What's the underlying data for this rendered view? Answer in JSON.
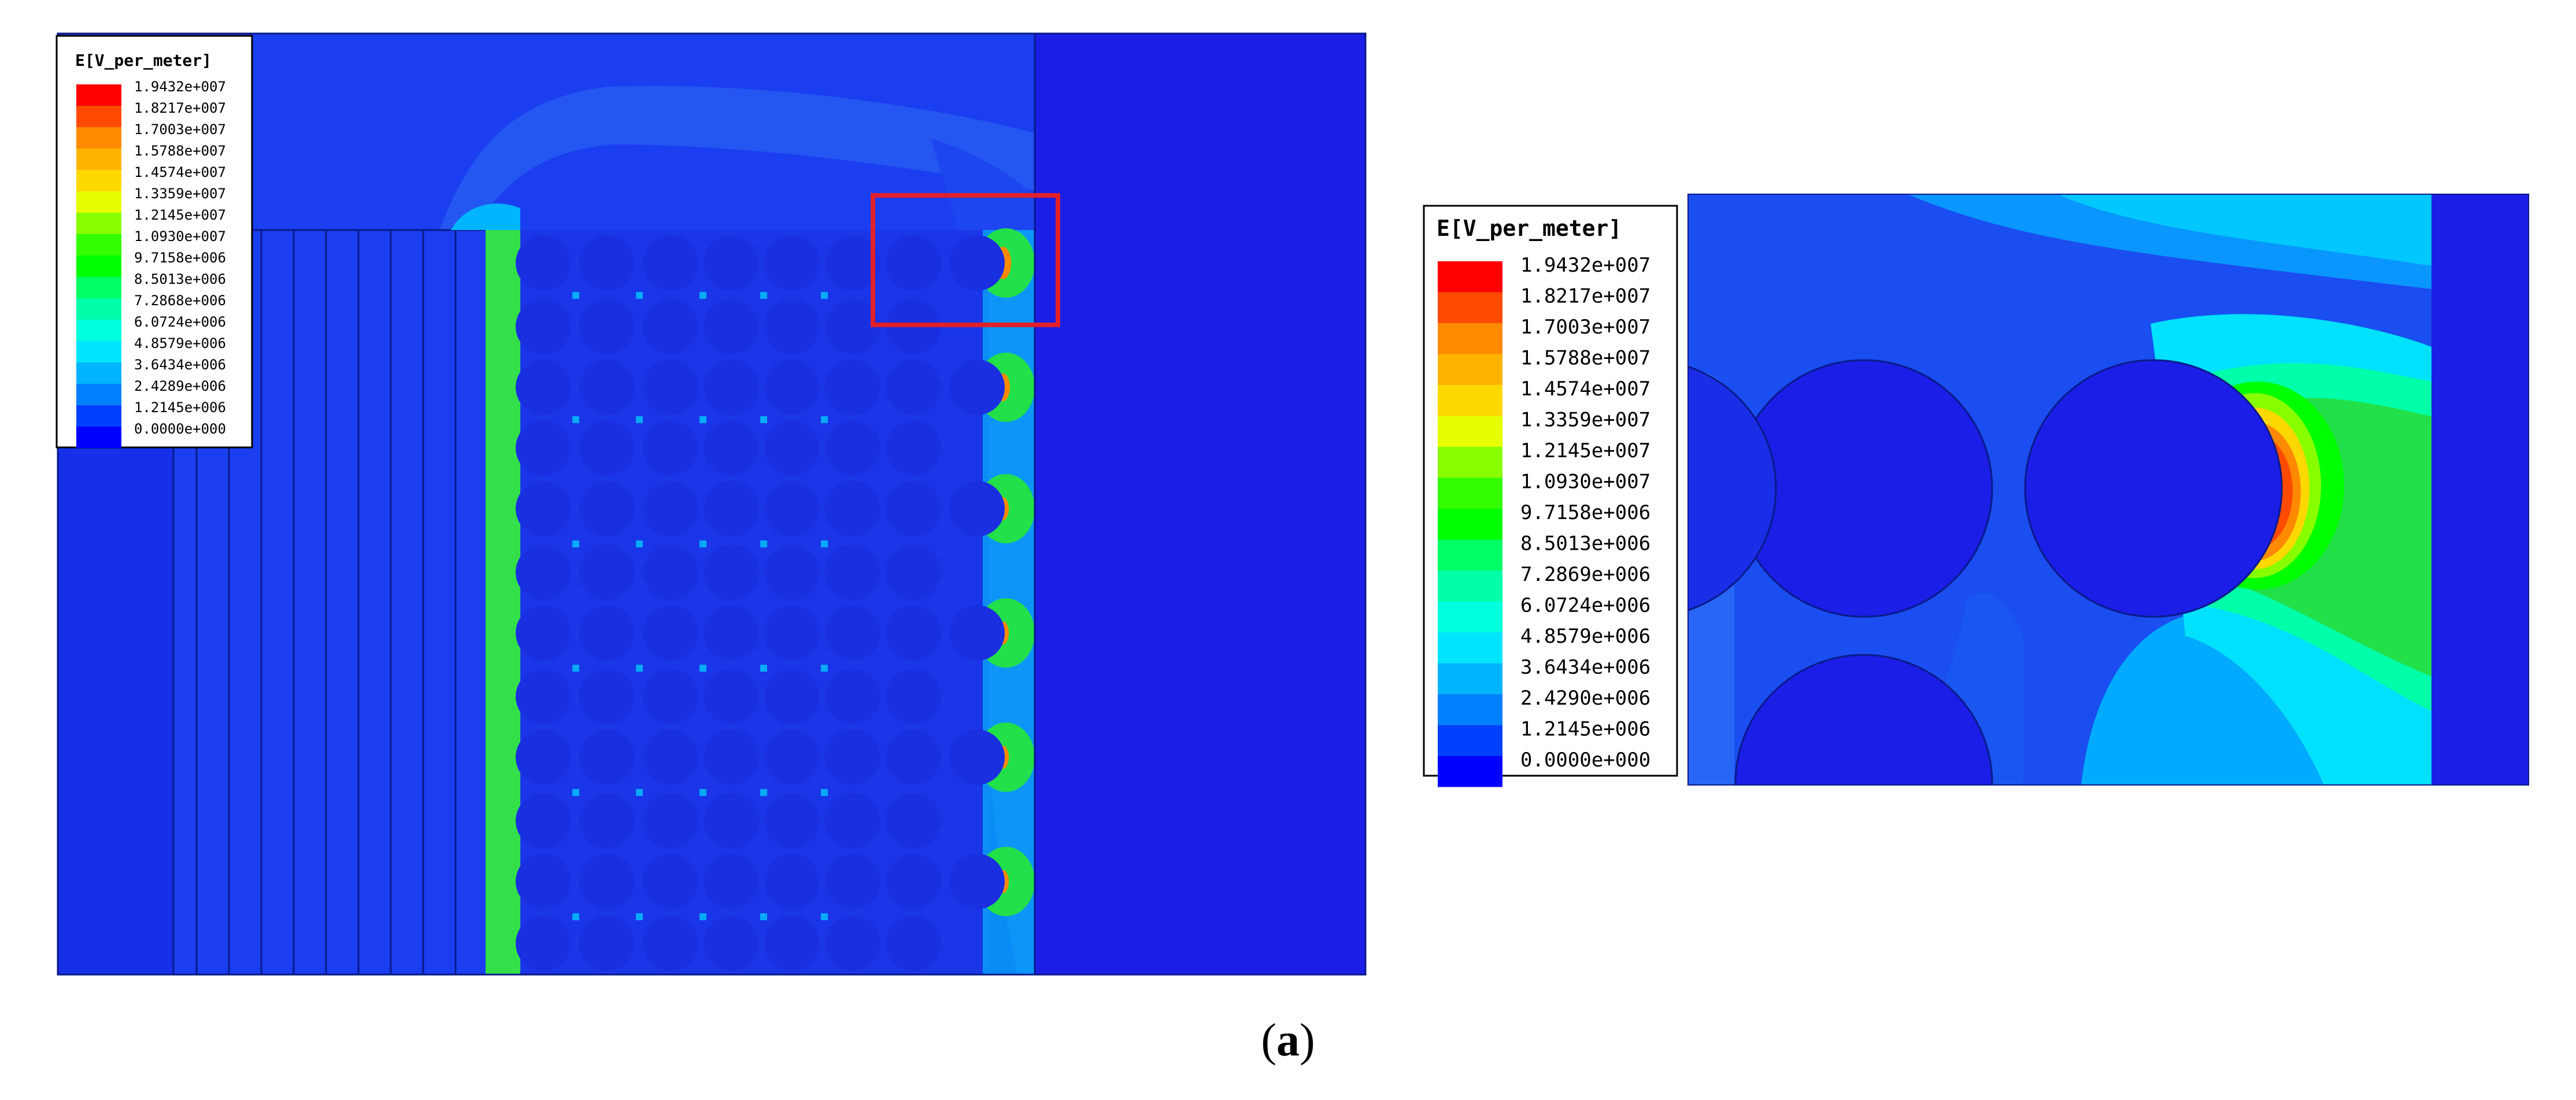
{
  "legend_left": {
    "title": "E[V_per_meter]",
    "labels": [
      "1.9432e+007",
      "1.8217e+007",
      "1.7003e+007",
      "1.5788e+007",
      "1.4574e+007",
      "1.3359e+007",
      "1.2145e+007",
      "1.0930e+007",
      "9.7158e+006",
      "8.5013e+006",
      "7.2868e+006",
      "6.0724e+006",
      "4.8579e+006",
      "3.6434e+006",
      "2.4289e+006",
      "1.2145e+006",
      "0.0000e+000"
    ]
  },
  "legend_right": {
    "title": "E[V_per_meter]",
    "labels": [
      "1.9432e+007",
      "1.8217e+007",
      "1.7003e+007",
      "1.5788e+007",
      "1.4574e+007",
      "1.3359e+007",
      "1.2145e+007",
      "1.0930e+007",
      "9.7158e+006",
      "8.5013e+006",
      "7.2869e+006",
      "6.0724e+006",
      "4.8579e+006",
      "3.6434e+006",
      "2.4290e+006",
      "1.2145e+006",
      "0.0000e+000"
    ]
  },
  "colors": [
    "#ff0000",
    "#ff4a00",
    "#ff8a00",
    "#ffb400",
    "#ffd800",
    "#e6ff00",
    "#88ff00",
    "#33ff00",
    "#00ff00",
    "#00ff64",
    "#00ffa8",
    "#00ffdc",
    "#00e4ff",
    "#00b4ff",
    "#0080ff",
    "#0040ff",
    "#0000ff"
  ],
  "caption": {
    "open": "(",
    "letter": "a",
    "close": ")"
  }
}
